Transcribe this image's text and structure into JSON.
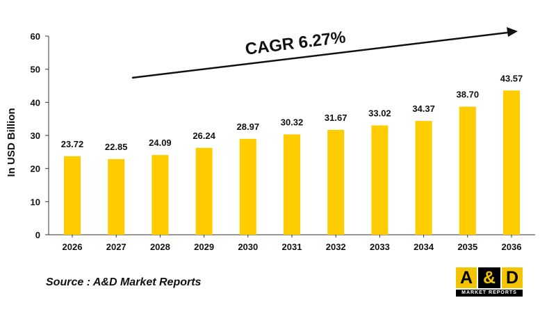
{
  "chart_data": {
    "type": "bar",
    "categories": [
      "2026",
      "2027",
      "2028",
      "2029",
      "2030",
      "2031",
      "2032",
      "2033",
      "2034",
      "2035",
      "2036"
    ],
    "values": [
      23.72,
      22.85,
      24.09,
      26.24,
      28.97,
      30.32,
      31.67,
      33.02,
      34.37,
      38.7,
      43.57
    ],
    "data_labels": [
      "23.72",
      "22.85",
      "24.09",
      "26.24",
      "28.97",
      "30.32",
      "31.67",
      "33.02",
      "34.37",
      "38.70",
      "43.57"
    ],
    "ylabel": "In USD Billion",
    "ylim": [
      0,
      60
    ],
    "yticks": [
      0,
      10,
      20,
      30,
      40,
      50,
      60
    ],
    "grid": false,
    "bar_color": "#ffcc00",
    "annotation": "CAGR 6.27%"
  },
  "source_text": "Source : A&D Market Reports",
  "logo": {
    "left": "A",
    "amp": "&",
    "right": "D",
    "sub": "MARKET REPORTS",
    "yellow": "#f2c500",
    "black": "#000000"
  }
}
